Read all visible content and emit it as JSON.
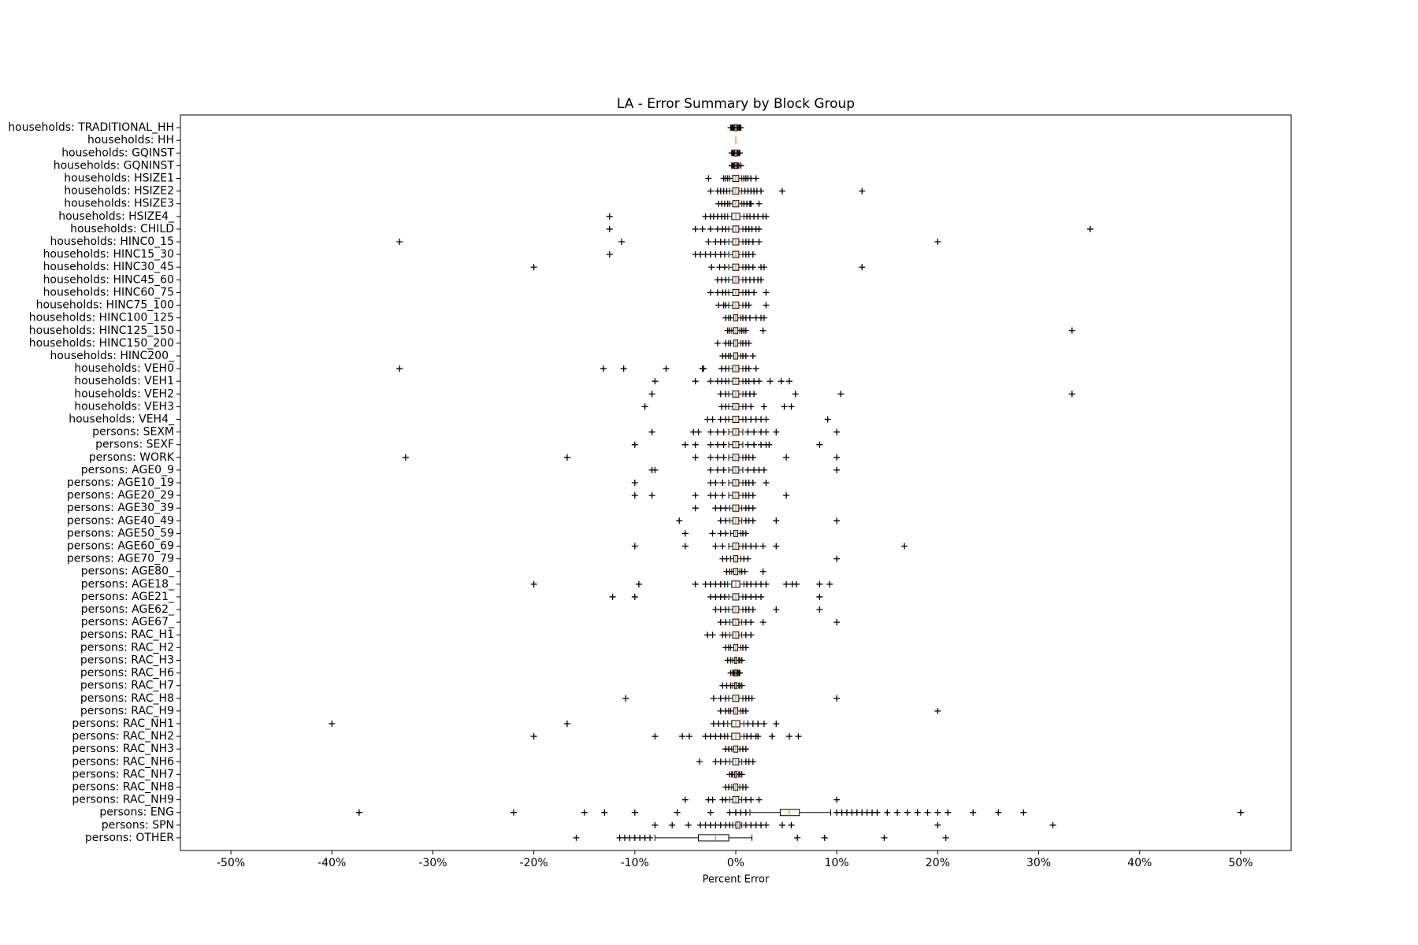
{
  "chart_data": {
    "type": "boxplot",
    "orientation": "horizontal",
    "title": "LA - Error Summary by Block Group",
    "x_label": "Percent Error",
    "xlim": [
      -55,
      55
    ],
    "xticks": [
      {
        "value": -50,
        "label": "-50%"
      },
      {
        "value": -40,
        "label": "-40%"
      },
      {
        "value": -30,
        "label": "-30%"
      },
      {
        "value": -20,
        "label": "-20%"
      },
      {
        "value": -10,
        "label": "-10%"
      },
      {
        "value": 0,
        "label": "0%"
      },
      {
        "value": 10,
        "label": "10%"
      },
      {
        "value": 20,
        "label": "20%"
      },
      {
        "value": 30,
        "label": "30%"
      },
      {
        "value": 40,
        "label": "40%"
      },
      {
        "value": 50,
        "label": "50%"
      }
    ],
    "box_color": "#000000",
    "median_color": "#ff7f0e",
    "flier_marker": "+",
    "categories": [
      "households: TRADITIONAL_HH",
      "households: HH",
      "households: GQINST",
      "households: GQNINST",
      "households: HSIZE1",
      "households: HSIZE2",
      "households: HSIZE3",
      "households: HSIZE4_",
      "households: CHILD",
      "households: HINC0_15",
      "households: HINC15_30",
      "households: HINC30_45",
      "households: HINC45_60",
      "households: HINC60_75",
      "households: HINC75_100",
      "households: HINC100_125",
      "households: HINC125_150",
      "households: HINC150_200",
      "households: HINC200_",
      "households: VEH0",
      "households: VEH1",
      "households: VEH2",
      "households: VEH3",
      "households: VEH4_",
      "persons: SEXM",
      "persons: SEXF",
      "persons: WORK",
      "persons: AGE0_9",
      "persons: AGE10_19",
      "persons: AGE20_29",
      "persons: AGE30_39",
      "persons: AGE40_49",
      "persons: AGE50_59",
      "persons: AGE60_69",
      "persons: AGE70_79",
      "persons: AGE80_",
      "persons: AGE18_",
      "persons: AGE21_",
      "persons: AGE62_",
      "persons: AGE67_",
      "persons: RAC_H1",
      "persons: RAC_H2",
      "persons: RAC_H3",
      "persons: RAC_H6",
      "persons: RAC_H7",
      "persons: RAC_H8",
      "persons: RAC_H9",
      "persons: RAC_NH1",
      "persons: RAC_NH2",
      "persons: RAC_NH3",
      "persons: RAC_NH6",
      "persons: RAC_NH7",
      "persons: RAC_NH8",
      "persons: RAC_NH9",
      "persons: ENG",
      "persons: SPN",
      "persons: OTHER"
    ],
    "boxes": [
      {
        "whislo": -0.2,
        "q1": -0.1,
        "med": 0,
        "q3": 0.1,
        "whishi": 0.2,
        "fliers": [
          -0.5,
          -0.4,
          -0.3,
          0.3,
          0.4,
          0.5
        ]
      },
      {
        "whislo": 0,
        "q1": 0,
        "med": 0,
        "q3": 0,
        "whishi": 0,
        "fliers": []
      },
      {
        "whislo": -0.2,
        "q1": -0.1,
        "med": 0,
        "q3": 0.1,
        "whishi": 0.2,
        "fliers": [
          -0.4,
          -0.3,
          0.3,
          0.4
        ]
      },
      {
        "whislo": -0.2,
        "q1": -0.1,
        "med": 0,
        "q3": 0.1,
        "whishi": 0.2,
        "fliers": [
          -0.4,
          -0.3,
          0.3,
          0.5
        ]
      },
      {
        "whislo": -0.6,
        "q1": -0.3,
        "med": 0,
        "q3": 0.3,
        "whishi": 0.6,
        "fliers": [
          -2.7,
          -1.2,
          -1,
          -0.8,
          0.8,
          1,
          1.2,
          1.5,
          2
        ]
      },
      {
        "whislo": -0.6,
        "q1": -0.3,
        "med": 0,
        "q3": 0.3,
        "whishi": 0.6,
        "fliers": [
          -2.5,
          -1.8,
          -1.5,
          -1.2,
          -0.9,
          0.9,
          1.2,
          1.5,
          1.8,
          2.1,
          2.5,
          4.6,
          12.5
        ]
      },
      {
        "whislo": -0.6,
        "q1": -0.3,
        "med": 0,
        "q3": 0.3,
        "whishi": 0.6,
        "fliers": [
          -1.7,
          -1.4,
          -1.1,
          -0.8,
          0.8,
          1.1,
          1.4,
          1.5,
          2.3
        ]
      },
      {
        "whislo": -0.8,
        "q1": -0.4,
        "med": 0,
        "q3": 0.4,
        "whishi": 0.8,
        "fliers": [
          -12.5,
          -3,
          -2.5,
          -2.2,
          -1.8,
          -1.4,
          -1.1,
          1.1,
          1.4,
          1.8,
          2.2,
          2.7,
          3
        ]
      },
      {
        "whislo": -0.7,
        "q1": -0.3,
        "med": 0,
        "q3": 0.3,
        "whishi": 0.7,
        "fliers": [
          -12.5,
          -4,
          -3.3,
          -2.5,
          -1.8,
          -1.3,
          -1,
          1,
          1.3,
          1.6,
          2,
          2.3,
          35.1
        ]
      },
      {
        "whislo": -0.7,
        "q1": -0.3,
        "med": 0,
        "q3": 0.3,
        "whishi": 0.7,
        "fliers": [
          -33.3,
          -11.3,
          -2.7,
          -2,
          -1.5,
          -1.1,
          1,
          1.3,
          1.7,
          2.3,
          20
        ]
      },
      {
        "whislo": -0.7,
        "q1": -0.3,
        "med": 0,
        "q3": 0.3,
        "whishi": 0.7,
        "fliers": [
          -12.5,
          -4,
          -3.5,
          -3,
          -2.5,
          -2,
          -1.5,
          -1.1,
          1,
          1.3,
          1.7
        ]
      },
      {
        "whislo": -0.7,
        "q1": -0.3,
        "med": 0,
        "q3": 0.3,
        "whishi": 0.7,
        "fliers": [
          -20,
          -2.4,
          -1.6,
          -1.1,
          1,
          1.3,
          1.7,
          2.5,
          2.8,
          12.5
        ]
      },
      {
        "whislo": -0.7,
        "q1": -0.3,
        "med": 0,
        "q3": 0.3,
        "whishi": 0.7,
        "fliers": [
          -1.8,
          -1.4,
          -1,
          1,
          1.4,
          1.8,
          2.2,
          2.5
        ]
      },
      {
        "whislo": -0.7,
        "q1": -0.3,
        "med": 0,
        "q3": 0.3,
        "whishi": 0.7,
        "fliers": [
          -2.5,
          -1.8,
          -1.3,
          -1,
          1,
          1.3,
          1.8,
          3
        ]
      },
      {
        "whislo": -0.7,
        "q1": -0.3,
        "med": 0,
        "q3": 0.3,
        "whishi": 0.7,
        "fliers": [
          -1.7,
          -1.2,
          -1,
          1,
          1.3,
          3
        ]
      },
      {
        "whislo": -0.5,
        "q1": -0.2,
        "med": 0,
        "q3": 0.2,
        "whishi": 0.5,
        "fliers": [
          -1,
          -0.7,
          0.7,
          1,
          1.4,
          2,
          2.5,
          2.8
        ]
      },
      {
        "whislo": -0.4,
        "q1": -0.2,
        "med": 0,
        "q3": 0.2,
        "whishi": 0.4,
        "fliers": [
          -0.8,
          -0.6,
          0.6,
          0.8,
          1,
          2.7,
          33.3
        ]
      },
      {
        "whislo": -0.5,
        "q1": -0.2,
        "med": 0,
        "q3": 0.2,
        "whishi": 0.5,
        "fliers": [
          -1.8,
          -1,
          -0.7,
          0.7,
          1,
          1.3
        ]
      },
      {
        "whislo": -0.5,
        "q1": -0.2,
        "med": 0,
        "q3": 0.2,
        "whishi": 0.5,
        "fliers": [
          -1.3,
          -1,
          -0.7,
          0.7,
          1,
          1.7
        ]
      },
      {
        "whislo": -0.7,
        "q1": -0.3,
        "med": 0,
        "q3": 0.3,
        "whishi": 0.7,
        "fliers": [
          -33.3,
          -13.1,
          -11.1,
          -6.9,
          -3.3,
          -3.2,
          -1.4,
          -1,
          1,
          1.3,
          2
        ]
      },
      {
        "whislo": -0.7,
        "q1": -0.3,
        "med": 0,
        "q3": 0.3,
        "whishi": 0.7,
        "fliers": [
          -8,
          -4,
          -2.5,
          -1.8,
          -1.4,
          -1,
          1,
          1.3,
          1.8,
          2.3,
          3.4,
          4.5,
          5.3
        ]
      },
      {
        "whislo": -0.7,
        "q1": -0.3,
        "med": 0,
        "q3": 0.3,
        "whishi": 0.7,
        "fliers": [
          -8.3,
          -1.5,
          -1,
          1,
          1.4,
          1.8,
          5.9,
          10.4,
          33.3
        ]
      },
      {
        "whislo": -0.7,
        "q1": -0.3,
        "med": 0,
        "q3": 0.3,
        "whishi": 0.7,
        "fliers": [
          -9,
          -1.4,
          -1,
          1,
          1.5,
          2.8,
          4.8,
          5.5
        ]
      },
      {
        "whislo": -0.7,
        "q1": -0.3,
        "med": 0,
        "q3": 0.3,
        "whishi": 0.7,
        "fliers": [
          -2.8,
          -2.3,
          -1.5,
          -1,
          1,
          1.5,
          2,
          2.5,
          3,
          9.1
        ]
      },
      {
        "whislo": -0.7,
        "q1": -0.3,
        "med": 0,
        "q3": 0.3,
        "whishi": 0.7,
        "fliers": [
          -8.3,
          -4.2,
          -3.7,
          -2.5,
          -1.8,
          -1.2,
          1.2,
          1.8,
          2.5,
          3,
          4,
          10
        ]
      },
      {
        "whislo": -0.7,
        "q1": -0.3,
        "med": 0,
        "q3": 0.3,
        "whishi": 0.7,
        "fliers": [
          -10,
          -5,
          -4,
          -2.5,
          -1.8,
          -1.2,
          1.2,
          1.8,
          2.5,
          3,
          3.3,
          8.3
        ]
      },
      {
        "whislo": -0.7,
        "q1": -0.3,
        "med": 0,
        "q3": 0.3,
        "whishi": 0.7,
        "fliers": [
          -32.7,
          -16.7,
          -4,
          -2.5,
          -1.8,
          -1.2,
          1,
          1.3,
          1.7,
          5,
          10
        ]
      },
      {
        "whislo": -0.7,
        "q1": -0.3,
        "med": 0,
        "q3": 0.3,
        "whishi": 0.7,
        "fliers": [
          -8.3,
          -8,
          -2.5,
          -1.8,
          -1.2,
          1.2,
          1.8,
          2.3,
          2.8,
          10
        ]
      },
      {
        "whislo": -0.7,
        "q1": -0.3,
        "med": 0,
        "q3": 0.3,
        "whishi": 0.7,
        "fliers": [
          -10,
          -2.5,
          -2,
          -1.3,
          1,
          1.3,
          1.7,
          3
        ]
      },
      {
        "whislo": -0.7,
        "q1": -0.3,
        "med": 0,
        "q3": 0.3,
        "whishi": 0.7,
        "fliers": [
          -10,
          -8.3,
          -4,
          -2.5,
          -2,
          -1.3,
          1,
          1.3,
          1.7,
          5
        ]
      },
      {
        "whislo": -0.6,
        "q1": -0.3,
        "med": 0,
        "q3": 0.3,
        "whishi": 0.6,
        "fliers": [
          -4,
          -2,
          -1.5,
          -1,
          1,
          1.3,
          1.7
        ]
      },
      {
        "whislo": -0.6,
        "q1": -0.3,
        "med": 0,
        "q3": 0.3,
        "whishi": 0.6,
        "fliers": [
          -5.6,
          -1.5,
          -1,
          1,
          1.3,
          1.7,
          4,
          10
        ]
      },
      {
        "whislo": -0.5,
        "q1": -0.2,
        "med": 0,
        "q3": 0.2,
        "whishi": 0.5,
        "fliers": [
          -5,
          -2.3,
          -1.5,
          -1,
          0.7,
          1
        ]
      },
      {
        "whislo": -0.7,
        "q1": -0.3,
        "med": 0,
        "q3": 0.3,
        "whishi": 0.7,
        "fliers": [
          -10,
          -5,
          -2,
          -1.3,
          1,
          1.5,
          2,
          2.7,
          4,
          16.7
        ]
      },
      {
        "whislo": -0.5,
        "q1": -0.2,
        "med": 0,
        "q3": 0.2,
        "whishi": 0.5,
        "fliers": [
          -1.3,
          -0.9,
          0.8,
          1.2,
          10
        ]
      },
      {
        "whislo": -0.4,
        "q1": -0.2,
        "med": 0,
        "q3": 0.2,
        "whishi": 0.4,
        "fliers": [
          -0.9,
          -0.6,
          0.6,
          0.9,
          2.7
        ]
      },
      {
        "whislo": -0.8,
        "q1": -0.4,
        "med": 0,
        "q3": 0.4,
        "whishi": 0.8,
        "fliers": [
          -20,
          -9.6,
          -4,
          -3,
          -2.5,
          -2,
          -1.5,
          -1.1,
          1.1,
          1.5,
          2,
          2.5,
          3,
          5,
          5.6,
          6,
          8.3,
          9.3
        ]
      },
      {
        "whislo": -0.7,
        "q1": -0.3,
        "med": 0,
        "q3": 0.3,
        "whishi": 0.7,
        "fliers": [
          -12.2,
          -10,
          -2.5,
          -2,
          -1.5,
          -1.1,
          1,
          1.5,
          2,
          2.5,
          8.3
        ]
      },
      {
        "whislo": -0.7,
        "q1": -0.3,
        "med": 0,
        "q3": 0.3,
        "whishi": 0.7,
        "fliers": [
          -2,
          -1.5,
          -1,
          1,
          1.3,
          1.7,
          4,
          8.3
        ]
      },
      {
        "whislo": -0.6,
        "q1": -0.3,
        "med": 0,
        "q3": 0.3,
        "whishi": 0.6,
        "fliers": [
          -1.5,
          -1,
          1,
          1.5,
          2.7,
          10
        ]
      },
      {
        "whislo": -0.6,
        "q1": -0.3,
        "med": 0,
        "q3": 0.3,
        "whishi": 0.6,
        "fliers": [
          -2.8,
          -2.3,
          -1.3,
          -1,
          1,
          1.5
        ]
      },
      {
        "whislo": -0.5,
        "q1": -0.2,
        "med": 0,
        "q3": 0.2,
        "whishi": 0.5,
        "fliers": [
          -1,
          -0.7,
          0.7,
          1
        ]
      },
      {
        "whislo": -0.3,
        "q1": -0.1,
        "med": 0,
        "q3": 0.1,
        "whishi": 0.3,
        "fliers": [
          -0.8,
          -0.5,
          0.4,
          0.6
        ]
      },
      {
        "whislo": -0.2,
        "q1": -0.1,
        "med": 0,
        "q3": 0.1,
        "whishi": 0.2,
        "fliers": [
          -0.5,
          -0.3,
          0.3,
          0.4
        ]
      },
      {
        "whislo": -0.3,
        "q1": -0.1,
        "med": 0,
        "q3": 0.1,
        "whishi": 0.3,
        "fliers": [
          -1.3,
          -0.9,
          -0.5,
          0.4,
          0.6
        ]
      },
      {
        "whislo": -0.7,
        "q1": -0.3,
        "med": 0,
        "q3": 0.3,
        "whishi": 0.7,
        "fliers": [
          -10.9,
          -2.2,
          -1.5,
          -1,
          1,
          1.3,
          1.6,
          10
        ]
      },
      {
        "whislo": -0.5,
        "q1": -0.2,
        "med": 0,
        "q3": 0.2,
        "whishi": 0.5,
        "fliers": [
          -1.5,
          -1,
          -0.7,
          0.7,
          1,
          20
        ]
      },
      {
        "whislo": -0.8,
        "q1": -0.4,
        "med": 0,
        "q3": 0.4,
        "whishi": 0.8,
        "fliers": [
          -40,
          -16.7,
          -2.2,
          -1.7,
          -1.2,
          1.2,
          1.7,
          2.2,
          2.8,
          4
        ]
      },
      {
        "whislo": -0.8,
        "q1": -0.4,
        "med": 0,
        "q3": 0.4,
        "whishi": 0.8,
        "fliers": [
          -20,
          -8,
          -5.3,
          -4.6,
          -3,
          -2.5,
          -2,
          -1.5,
          -1.1,
          1.1,
          1.5,
          2,
          2.2,
          3.6,
          5.3,
          6.2
        ]
      },
      {
        "whislo": -0.4,
        "q1": -0.2,
        "med": 0,
        "q3": 0.2,
        "whishi": 0.4,
        "fliers": [
          -1,
          -0.7,
          0.7,
          1
        ]
      },
      {
        "whislo": -0.6,
        "q1": -0.3,
        "med": 0,
        "q3": 0.3,
        "whishi": 0.6,
        "fliers": [
          -3.6,
          -2,
          -1.5,
          -1,
          1,
          1.3,
          1.7
        ]
      },
      {
        "whislo": -0.3,
        "q1": -0.1,
        "med": 0,
        "q3": 0.1,
        "whishi": 0.3,
        "fliers": [
          -0.6,
          -0.4,
          0.4,
          0.6
        ]
      },
      {
        "whislo": -0.4,
        "q1": -0.2,
        "med": 0,
        "q3": 0.2,
        "whishi": 0.4,
        "fliers": [
          -1,
          -0.7,
          0.7,
          1
        ]
      },
      {
        "whislo": -0.6,
        "q1": -0.3,
        "med": 0,
        "q3": 0.3,
        "whishi": 0.6,
        "fliers": [
          -5,
          -2.7,
          -2.3,
          -1.3,
          -1,
          1,
          1.5,
          2.3,
          10
        ]
      },
      {
        "whislo": 1.4,
        "q1": 4.4,
        "med": 5.3,
        "q3": 6.3,
        "whishi": 9.4,
        "fliers": [
          -37.3,
          -22,
          -15,
          -13,
          -10,
          -5.8,
          -2.5,
          -0.6,
          0,
          0.5,
          1,
          10,
          10.5,
          11,
          11.5,
          12,
          12.5,
          13,
          13.5,
          14,
          15,
          16,
          17,
          18,
          19,
          20,
          21,
          23.5,
          26,
          28.5,
          50
        ]
      },
      {
        "whislo": -0.3,
        "q1": 0,
        "med": 0.2,
        "q3": 0.4,
        "whishi": 0.6,
        "fliers": [
          -8,
          -6.3,
          -4.7,
          -3.5,
          -3,
          -2.5,
          -2,
          -1.5,
          -1,
          -0.6,
          1,
          1.5,
          2,
          2.5,
          3,
          4.6,
          5.5,
          20,
          31.4
        ]
      },
      {
        "whislo": -8,
        "q1": -3.7,
        "med": -2,
        "q3": -0.7,
        "whishi": 1.6,
        "fliers": [
          -15.8,
          -11.5,
          -11,
          -10.5,
          -10,
          -9.5,
          -9,
          -8.5,
          6.1,
          8.8,
          14.7,
          20.8
        ]
      }
    ]
  }
}
